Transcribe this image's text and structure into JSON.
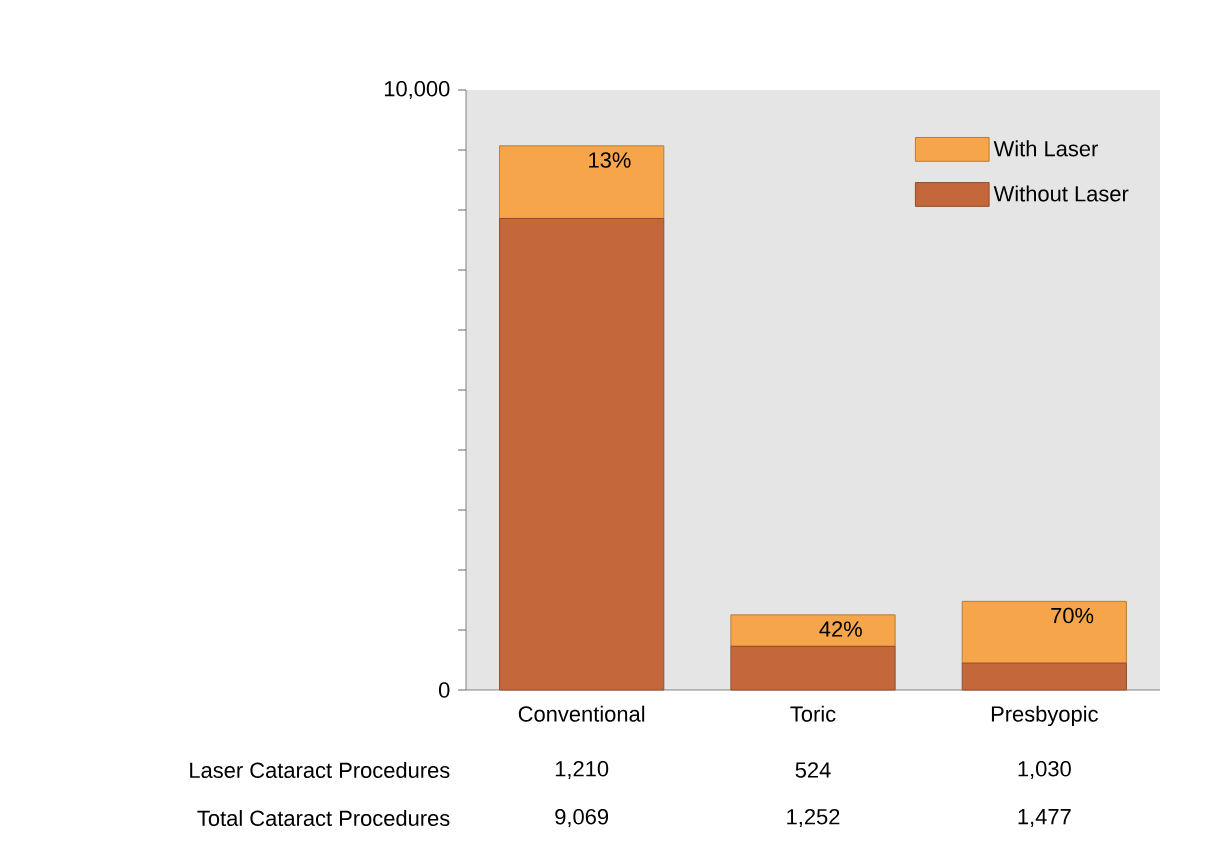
{
  "chart_data": {
    "type": "bar",
    "stacked": true,
    "categories": [
      "Conventional",
      "Toric",
      "Presbyopic"
    ],
    "series": [
      {
        "name": "Without Laser",
        "color": "#c4683c",
        "values": [
          7859,
          728,
          447
        ]
      },
      {
        "name": "With Laser",
        "color": "#f6a54a",
        "values": [
          1210,
          524,
          1030
        ],
        "value_labels": [
          "1,210",
          "524",
          "1,030"
        ]
      }
    ],
    "ylim": [
      0,
      10000
    ],
    "yticks": [
      0,
      {
        "value": 1000,
        "label": null
      },
      {
        "value": 2000,
        "label": null
      },
      {
        "value": 3000,
        "label": null
      },
      {
        "value": 4000,
        "label": null
      },
      {
        "value": 5000,
        "label": null
      },
      {
        "value": 6000,
        "label": null
      },
      {
        "value": 7000,
        "label": null
      },
      {
        "value": 8000,
        "label": null
      },
      {
        "value": 9000,
        "label": null
      },
      {
        "value": 10000,
        "label": "10,000"
      }
    ],
    "legend": "top right",
    "annotations": [
      {
        "text": "13%",
        "x": "Conventional",
        "y": 9069
      },
      {
        "text": "42%",
        "x": "Toric",
        "y": 1252
      },
      {
        "text": "70%",
        "x": "Presbyopic",
        "y": 1477
      },
      "Laser Cataract Procedures",
      "Total Cataract Procedures",
      "9,069",
      "1,252",
      "1,477"
    ]
  }
}
